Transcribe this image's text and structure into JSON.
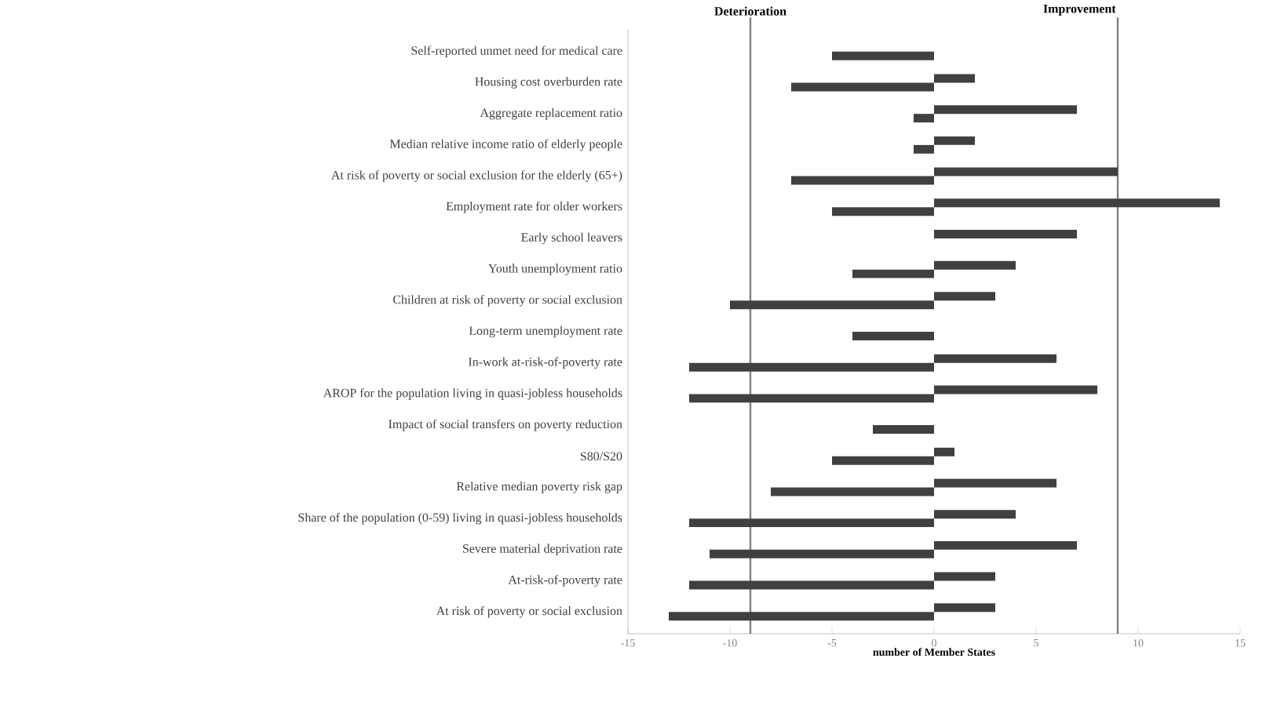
{
  "chart_data": {
    "type": "bar",
    "orientation": "horizontal",
    "categories": [
      "Self-reported unmet need for medical care",
      "Housing cost overburden rate",
      "Aggregate replacement ratio",
      "Median relative income ratio of elderly people",
      "At risk of poverty or social exclusion for the elderly (65+)",
      "Employment rate for older workers",
      "Early school leavers",
      "Youth unemployment ratio",
      "Children at risk of poverty or social exclusion",
      "Long-term unemployment rate",
      "In-work at-risk-of-poverty rate",
      "AROP for the population living in quasi-jobless households",
      "Impact of social transfers on poverty reduction",
      "S80/S20",
      "Relative median poverty risk gap",
      "Share of the population (0-59) living in quasi-jobless households",
      "Severe material deprivation rate",
      "At-risk-of-poverty rate",
      "At risk of poverty or social exclusion"
    ],
    "series": [
      {
        "color": "#404040",
        "values": [
          0,
          2,
          7,
          2,
          9,
          14,
          7,
          4,
          3,
          0,
          6,
          8,
          0,
          1,
          6,
          4,
          7,
          3,
          3
        ]
      },
      {
        "color": "#404040",
        "values": [
          -5,
          -7,
          -1,
          -1,
          -7,
          -5,
          0,
          -4,
          -10,
          -4,
          -12,
          -12,
          -3,
          -5,
          -8,
          -12,
          -11,
          -12,
          -13
        ]
      }
    ],
    "xlim": [
      -15,
      15
    ],
    "xticks": [
      -15,
      -10,
      -5,
      0,
      5,
      10,
      15
    ],
    "xlabel": "number of Member States",
    "ref_lines": [
      {
        "axis": "x",
        "value": -9,
        "label": "Deterioration",
        "color": "#808080"
      },
      {
        "axis": "x",
        "value": 9,
        "label": "Improvement",
        "color": "#808080"
      }
    ]
  }
}
